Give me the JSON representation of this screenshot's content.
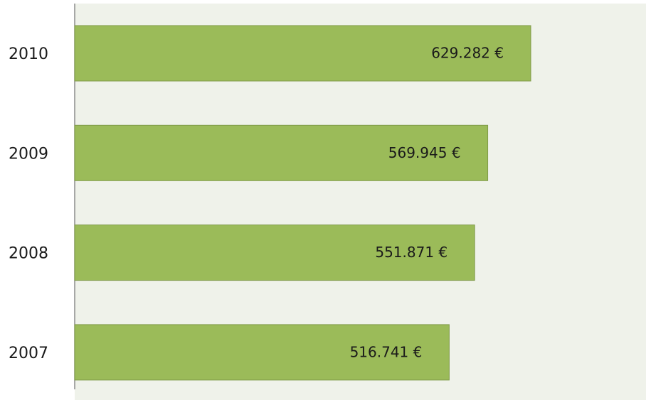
{
  "chart_data": {
    "type": "bar",
    "orientation": "horizontal",
    "categories": [
      "2010",
      "2009",
      "2008",
      "2007"
    ],
    "values": [
      629282,
      569945,
      551871,
      516741
    ],
    "value_labels": [
      "629.282 €",
      "569.945 €",
      "551.871 €",
      "516.741 €"
    ],
    "color": "#9bbb59"
  }
}
